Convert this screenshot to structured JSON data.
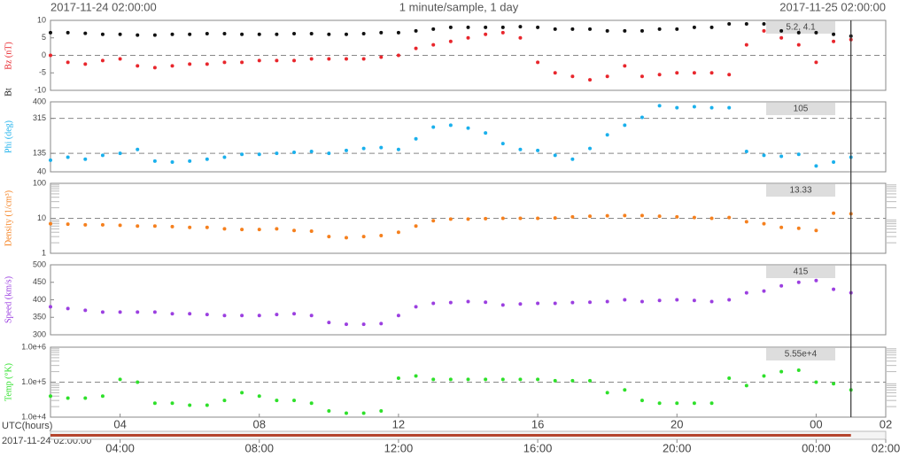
{
  "header": {
    "left": "2017-11-24 02:00:00",
    "center": "1 minute/sample, 1 day",
    "right": "2017-11-25 02:00:00"
  },
  "xaxis": {
    "xlim": [
      0,
      24
    ],
    "cursor": 23,
    "label": "UTC(hours)",
    "xticks": [
      {
        "value": 2,
        "label": "04"
      },
      {
        "value": 6,
        "label": "08"
      },
      {
        "value": 10,
        "label": "12"
      },
      {
        "value": 14,
        "label": "16"
      },
      {
        "value": 18,
        "label": "20"
      },
      {
        "value": 22,
        "label": "00"
      },
      {
        "value": 24,
        "label": "02"
      }
    ]
  },
  "timeline": {
    "start": "2017-11-24 02:00:00",
    "ticks": [
      {
        "value": 2,
        "label": "04:00"
      },
      {
        "value": 6,
        "label": "08:00"
      },
      {
        "value": 10,
        "label": "12:00"
      },
      {
        "value": 14,
        "label": "16:00"
      },
      {
        "value": 18,
        "label": "20:00"
      },
      {
        "value": 22,
        "label": "00:00"
      },
      {
        "value": 24,
        "label": "02:00"
      }
    ]
  },
  "chart_data": [
    {
      "type": "scatter",
      "readout": "5.2, 4.1",
      "ylim": [
        -10,
        10
      ],
      "yticks": [
        -10,
        -5,
        0,
        5,
        10
      ],
      "dashed": [
        0
      ],
      "x": [
        0,
        0.5,
        1,
        1.5,
        2,
        2.5,
        3,
        3.5,
        4,
        4.5,
        5,
        5.5,
        6,
        6.5,
        7,
        7.5,
        8,
        8.5,
        9,
        9.5,
        10,
        10.5,
        11,
        11.5,
        12,
        12.5,
        13,
        13.5,
        14,
        14.5,
        15,
        15.5,
        16,
        16.5,
        17,
        17.5,
        18,
        18.5,
        19,
        19.5,
        20,
        20.5,
        21,
        21.5,
        22,
        22.5,
        23
      ],
      "series": [
        {
          "name": "Bz (nT)",
          "color": "#e8262c",
          "values": [
            0,
            -2,
            -2.5,
            -1.5,
            -1,
            -3,
            -3.5,
            -3,
            -2.5,
            -2.5,
            -2,
            -2,
            -1.5,
            -1.5,
            -1.5,
            -1,
            -1,
            -1,
            -1,
            -0.5,
            0,
            2,
            3,
            4,
            5,
            6,
            6.5,
            5,
            -2,
            -5,
            -6,
            -7,
            -6,
            -3,
            -6,
            -5.5,
            -5,
            -5,
            -5,
            -5.5,
            3,
            7,
            5,
            3,
            -2,
            4,
            4.5
          ]
        },
        {
          "name": "Bt",
          "color": "#111111",
          "values": [
            6.5,
            6.5,
            6.3,
            6,
            6,
            5.8,
            5.8,
            6,
            6,
            6.2,
            6.2,
            6,
            6,
            6,
            6.2,
            6.2,
            6,
            6,
            6.2,
            6.5,
            6.5,
            7,
            7.5,
            8,
            8,
            8,
            8,
            8.2,
            8,
            7.5,
            7.5,
            7.5,
            7,
            7,
            7,
            7.5,
            7.5,
            8,
            8,
            9,
            9,
            9,
            7,
            6.5,
            6.5,
            6,
            5.5
          ]
        }
      ]
    },
    {
      "type": "scatter",
      "readout": "105",
      "ylim": [
        40,
        400
      ],
      "yticks": [
        40,
        135,
        315,
        400
      ],
      "dashed": [
        135,
        315
      ],
      "x": [
        0,
        0.5,
        1,
        1.5,
        2,
        2.5,
        3,
        3.5,
        4,
        4.5,
        5,
        5.5,
        6,
        6.5,
        7,
        7.5,
        8,
        8.5,
        9,
        9.5,
        10,
        10.5,
        11,
        11.5,
        12,
        12.5,
        13,
        13.5,
        14,
        14.5,
        15,
        15.5,
        16,
        16.5,
        17,
        17.5,
        18,
        18.5,
        19,
        19.5,
        20,
        20.5,
        21,
        21.5,
        22,
        22.5,
        23
      ],
      "series": [
        {
          "name": "Phi (deg)",
          "color": "#1ab0ec",
          "values": [
            100,
            115,
            105,
            125,
            135,
            155,
            95,
            90,
            95,
            105,
            115,
            130,
            130,
            135,
            140,
            145,
            135,
            150,
            160,
            165,
            155,
            210,
            270,
            280,
            265,
            240,
            185,
            155,
            150,
            125,
            105,
            160,
            230,
            280,
            320,
            380,
            370,
            375,
            370,
            370,
            145,
            125,
            120,
            130,
            70,
            90,
            115
          ]
        }
      ]
    },
    {
      "type": "scatter",
      "readout": "13.33",
      "log": true,
      "ylim": [
        1,
        100
      ],
      "yticks": [
        1,
        10,
        100
      ],
      "dashed": [
        10
      ],
      "x": [
        0,
        0.5,
        1,
        1.5,
        2,
        2.5,
        3,
        3.5,
        4,
        4.5,
        5,
        5.5,
        6,
        6.5,
        7,
        7.5,
        8,
        8.5,
        9,
        9.5,
        10,
        10.5,
        11,
        11.5,
        12,
        12.5,
        13,
        13.5,
        14,
        14.5,
        15,
        15.5,
        16,
        16.5,
        17,
        17.5,
        18,
        18.5,
        19,
        19.5,
        20,
        20.5,
        21,
        21.5,
        22,
        22.5,
        23
      ],
      "series": [
        {
          "name": "Density (1/cm³)",
          "color": "#f5801e",
          "values": [
            7,
            6.8,
            6.5,
            6.5,
            6.3,
            6,
            6,
            5.8,
            5.5,
            5.5,
            5,
            4.8,
            4.8,
            5,
            4.5,
            4.3,
            3,
            2.8,
            3,
            3.2,
            4,
            6,
            8.5,
            9.5,
            9.5,
            9.8,
            10,
            10,
            10,
            10.2,
            11,
            11.5,
            11.8,
            12,
            12,
            11.5,
            11,
            10.5,
            10,
            10.5,
            8,
            7,
            5.5,
            5.2,
            4.5,
            14,
            13.5
          ]
        }
      ]
    },
    {
      "type": "scatter",
      "readout": "415",
      "ylim": [
        300,
        500
      ],
      "yticks": [
        300,
        350,
        400,
        450,
        500
      ],
      "dashed": [],
      "x": [
        0,
        0.5,
        1,
        1.5,
        2,
        2.5,
        3,
        3.5,
        4,
        4.5,
        5,
        5.5,
        6,
        6.5,
        7,
        7.5,
        8,
        8.5,
        9,
        9.5,
        10,
        10.5,
        11,
        11.5,
        12,
        12.5,
        13,
        13.5,
        14,
        14.5,
        15,
        15.5,
        16,
        16.5,
        17,
        17.5,
        18,
        18.5,
        19,
        19.5,
        20,
        20.5,
        21,
        21.5,
        22,
        22.5,
        23
      ],
      "series": [
        {
          "name": "Speed (km/s)",
          "color": "#9b3fe0",
          "values": [
            380,
            375,
            370,
            365,
            365,
            365,
            365,
            360,
            360,
            358,
            355,
            355,
            355,
            358,
            360,
            355,
            335,
            330,
            330,
            332,
            355,
            380,
            390,
            392,
            395,
            393,
            385,
            388,
            390,
            390,
            392,
            393,
            395,
            400,
            395,
            398,
            400,
            398,
            395,
            400,
            420,
            425,
            440,
            450,
            455,
            430,
            420
          ]
        }
      ]
    },
    {
      "type": "scatter",
      "readout": "5.55e+4",
      "log": true,
      "ylim": [
        10000,
        1000000
      ],
      "yticks": [
        {
          "value": 10000,
          "label": "1.0e+4"
        },
        {
          "value": 100000,
          "label": "1.0e+5"
        },
        {
          "value": 1000000,
          "label": "1.0e+6"
        }
      ],
      "dashed": [
        100000
      ],
      "x": [
        0,
        0.5,
        1,
        1.5,
        2,
        2.5,
        3,
        3.5,
        4,
        4.5,
        5,
        5.5,
        6,
        6.5,
        7,
        7.5,
        8,
        8.5,
        9,
        9.5,
        10,
        10.5,
        11,
        11.5,
        12,
        12.5,
        13,
        13.5,
        14,
        14.5,
        15,
        15.5,
        16,
        16.5,
        17,
        17.5,
        18,
        18.5,
        19,
        19.5,
        20,
        20.5,
        21,
        21.5,
        22,
        22.5,
        23
      ],
      "series": [
        {
          "name": "Temp (°K)",
          "color": "#2ee02a",
          "values": [
            40000,
            35000,
            35000,
            40000,
            120000,
            100000,
            25000,
            25000,
            22000,
            22000,
            30000,
            50000,
            40000,
            30000,
            30000,
            25000,
            15000,
            13000,
            13000,
            15000,
            130000,
            150000,
            120000,
            120000,
            120000,
            120000,
            120000,
            120000,
            120000,
            110000,
            110000,
            110000,
            50000,
            60000,
            30000,
            25000,
            25000,
            25000,
            25000,
            130000,
            80000,
            150000,
            200000,
            220000,
            100000,
            90000,
            60000
          ]
        }
      ]
    }
  ]
}
